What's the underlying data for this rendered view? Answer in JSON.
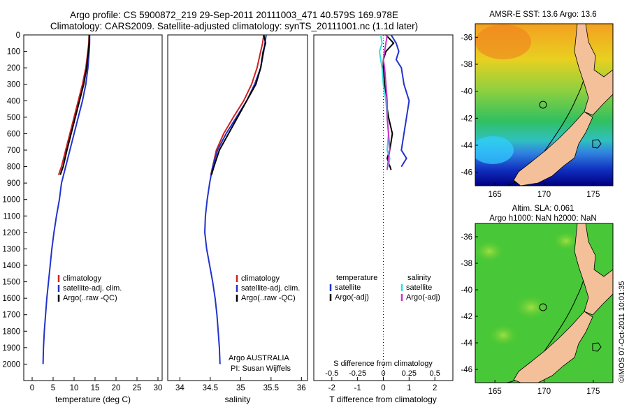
{
  "header": {
    "line1": "Argo profile: CS 5900872_219 29-Sep-2011 20111003_471 40.579S 169.978E",
    "line2": "Climatology: CARS2009. Satellite-adjusted climatology: synTS_20111001.nc (1.1d later)"
  },
  "credit": "©IMOS 07-Oct-2011 10:01:35",
  "colors": {
    "climatology": "#cc2222",
    "satellite": "#2233cc",
    "argo": "#000000",
    "sal_satellite": "#33dddd",
    "sal_argo": "#cc33cc",
    "land": "#f4c09a"
  },
  "chart_data": [
    {
      "type": "line",
      "id": "temperature",
      "xlabel": "temperature (deg C)",
      "ylabel": "",
      "xlim": [
        -2,
        31
      ],
      "ylim": [
        0,
        2100
      ],
      "y_reversed": true,
      "xticks": [
        0,
        5,
        10,
        15,
        20,
        25,
        30
      ],
      "yticks": [
        0,
        100,
        200,
        300,
        400,
        500,
        600,
        700,
        800,
        900,
        1000,
        1100,
        1200,
        1300,
        1400,
        1500,
        1600,
        1700,
        1800,
        1900,
        2000
      ],
      "legend": {
        "placement": "lower-center",
        "entries": [
          "climatology",
          "satellite-adj. clim.",
          "Argo(..raw -QC)"
        ]
      },
      "series": [
        {
          "name": "climatology",
          "color": "#cc2222",
          "x": [
            13.6,
            13.5,
            13.3,
            12.8,
            12,
            11,
            10,
            9,
            8,
            7,
            6.3
          ],
          "y": [
            0,
            50,
            100,
            200,
            300,
            400,
            500,
            600,
            700,
            800,
            850
          ]
        },
        {
          "name": "satellite-adj. clim.",
          "color": "#2233cc",
          "x": [
            13.7,
            13.7,
            13.6,
            13.3,
            12.8,
            12,
            11,
            10,
            9,
            8,
            7,
            6.5,
            5.8,
            5.2,
            4.7,
            4.3,
            3.9,
            3.5,
            3.2,
            2.9,
            2.7,
            2.6
          ],
          "y": [
            0,
            50,
            100,
            200,
            300,
            400,
            500,
            600,
            700,
            800,
            900,
            1000,
            1100,
            1200,
            1300,
            1400,
            1500,
            1600,
            1700,
            1800,
            1900,
            2000
          ]
        },
        {
          "name": "Argo(..raw -QC)",
          "color": "#000000",
          "x": [
            13.6,
            13.6,
            13.4,
            13,
            12.3,
            11.3,
            10.3,
            9.3,
            8.3,
            7.4,
            6.7
          ],
          "y": [
            0,
            50,
            100,
            200,
            300,
            400,
            500,
            600,
            700,
            800,
            850
          ]
        }
      ]
    },
    {
      "type": "line",
      "id": "salinity",
      "xlabel": "salinity",
      "ylabel": "",
      "xlim": [
        33.8,
        36.1
      ],
      "ylim": [
        0,
        2100
      ],
      "y_reversed": true,
      "xticks": [
        34,
        34.5,
        35,
        35.5,
        36
      ],
      "legend": {
        "placement": "lower-center",
        "entries": [
          "climatology",
          "satellite-adj. clim.",
          "Argo(..raw -QC)"
        ]
      },
      "annotation": [
        "Argo AUSTRALIA",
        "PI: Susan Wijffels"
      ],
      "series": [
        {
          "name": "climatology",
          "color": "#cc2222",
          "x": [
            35.38,
            35.36,
            35.33,
            35.27,
            35.18,
            35.05,
            34.88,
            34.72,
            34.6,
            34.54,
            34.51
          ],
          "y": [
            0,
            50,
            100,
            200,
            300,
            400,
            500,
            600,
            700,
            800,
            850
          ]
        },
        {
          "name": "satellite-adj. clim.",
          "color": "#2233cc",
          "x": [
            35.42,
            35.4,
            35.38,
            35.33,
            35.23,
            35.1,
            34.93,
            34.76,
            34.62,
            34.54,
            34.49,
            34.45,
            34.42,
            34.41,
            34.44,
            34.49,
            34.54,
            34.58,
            34.61,
            34.63,
            34.65,
            34.66
          ],
          "y": [
            0,
            50,
            100,
            200,
            300,
            400,
            500,
            600,
            700,
            800,
            900,
            1000,
            1100,
            1200,
            1300,
            1400,
            1500,
            1600,
            1700,
            1800,
            1900,
            2000
          ]
        },
        {
          "name": "Argo(..raw -QC)",
          "color": "#000000",
          "x": [
            35.38,
            35.41,
            35.37,
            35.33,
            35.25,
            35.1,
            34.95,
            34.8,
            34.65,
            34.56,
            34.52
          ],
          "y": [
            0,
            50,
            100,
            200,
            300,
            400,
            500,
            600,
            700,
            800,
            850
          ]
        }
      ]
    },
    {
      "type": "line",
      "id": "differences",
      "xlabel": "T difference from climatology",
      "xlabel_top": "S difference from climatology",
      "ylabel": "",
      "xlim": [
        -2.7,
        2.7
      ],
      "ylim": [
        0,
        2100
      ],
      "y_reversed": true,
      "xticks_T": [
        -2,
        -1,
        0,
        1,
        2
      ],
      "xticks_S": [
        "-0.5",
        "-0.25",
        "0",
        "0.25",
        "0.5"
      ],
      "legend": {
        "placement": "lower-center",
        "temperature": {
          "heading": "temperature",
          "entries": [
            "satellite",
            "Argo(-adj)"
          ]
        },
        "salinity": {
          "heading": "salinity",
          "entries": [
            "satellite",
            "Argo(-adj)"
          ]
        }
      },
      "series": [
        {
          "name": "T satellite",
          "color": "#2233cc",
          "x": [
            0.3,
            0.5,
            0.6,
            0.5,
            0.7,
            0.8,
            1.0,
            0.9,
            0.8,
            0.7,
            0.9,
            0.7
          ],
          "y": [
            0,
            50,
            100,
            150,
            200,
            300,
            400,
            500,
            600,
            700,
            750,
            800
          ]
        },
        {
          "name": "T Argo(-adj)",
          "color": "#000000",
          "x": [
            0.1,
            0.4,
            0.1,
            0.0,
            0.0,
            0.05,
            0.1,
            0.2,
            0.35,
            0.25,
            0.15,
            0.3
          ],
          "y": [
            0,
            50,
            100,
            150,
            200,
            300,
            400,
            500,
            600,
            700,
            750,
            820
          ]
        },
        {
          "name": "S satellite",
          "color": "#33dddd",
          "x": [
            -0.1,
            -0.05,
            -0.15,
            -0.1,
            -0.05,
            0.0,
            0.1,
            0.15,
            0.2,
            0.15,
            0.25,
            0.2
          ],
          "y": [
            0,
            50,
            100,
            150,
            200,
            300,
            400,
            500,
            600,
            700,
            750,
            800
          ]
        },
        {
          "name": "S Argo(-adj)",
          "color": "#cc33cc",
          "x": [
            0.15,
            0.1,
            0.05,
            0.0,
            0.05,
            0.1,
            0.15,
            0.15,
            0.2,
            0.25,
            0.2,
            0.15
          ],
          "y": [
            0,
            50,
            100,
            150,
            200,
            300,
            400,
            500,
            600,
            700,
            750,
            820
          ]
        }
      ]
    }
  ],
  "maps": [
    {
      "id": "sst",
      "title": "AMSR-E SST: 13.6  Argo: 13.6",
      "xticks": [
        165,
        170,
        175
      ],
      "yticks": [
        -36,
        -38,
        -40,
        -42,
        -44,
        -46
      ],
      "xlim": [
        163,
        177
      ],
      "ylim": [
        -47,
        -35
      ],
      "float_position": {
        "lon": 169.978,
        "lat": -40.579
      }
    },
    {
      "id": "sla",
      "title_line1": "Altim. SLA: 0.061",
      "title_line2": "Argo h1000: NaN h2000: NaN",
      "xticks": [
        165,
        170,
        175
      ],
      "yticks": [
        -36,
        -38,
        -40,
        -42,
        -44,
        -46
      ],
      "xlim": [
        163,
        177
      ],
      "ylim": [
        -47,
        -35
      ],
      "float_position": {
        "lon": 169.978,
        "lat": -40.579
      }
    }
  ]
}
